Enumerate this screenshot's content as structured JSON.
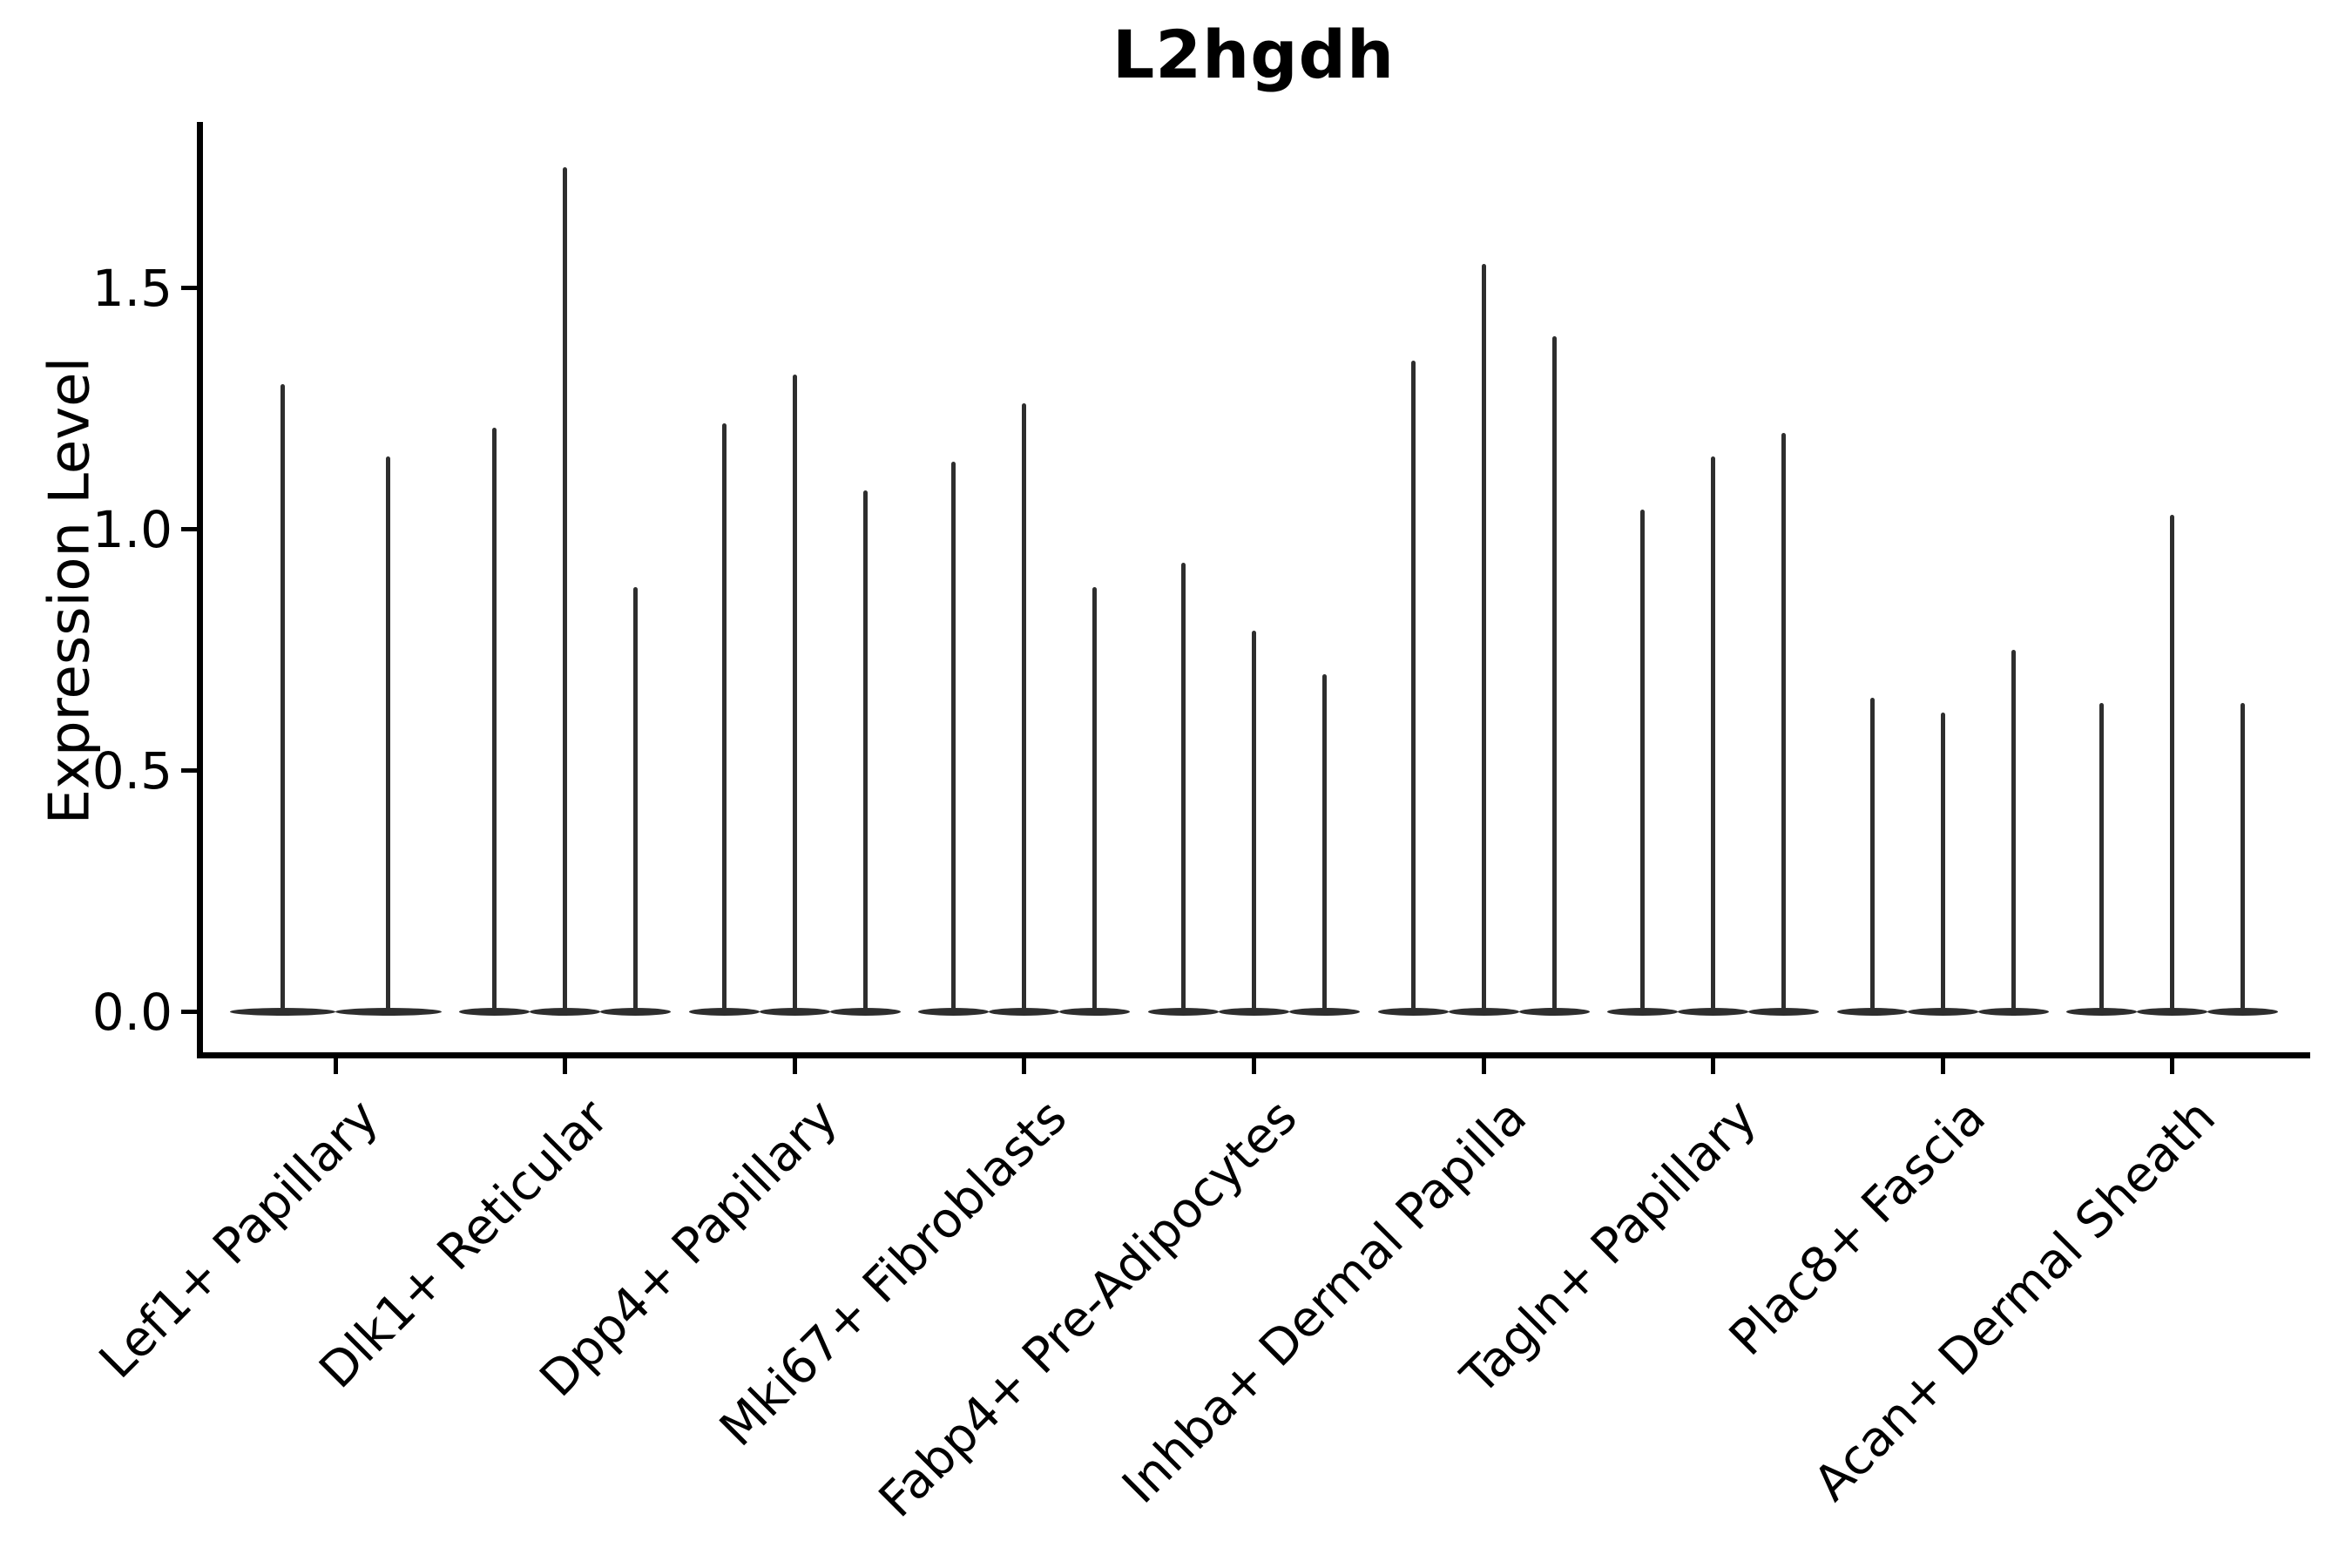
{
  "chart_data": {
    "type": "violin",
    "title": "L2hgdh",
    "ylabel": "Expression Level",
    "xlabel": "",
    "yticks": [
      "0.0",
      "0.5",
      "1.0",
      "1.5"
    ],
    "ytick_values": [
      0.0,
      0.5,
      1.0,
      1.5
    ],
    "ylim": [
      -0.09,
      1.84
    ],
    "grid": false,
    "legend": "none",
    "violin_color": "#2e2e2e",
    "axis_color": "#000000",
    "background_color": "#ffffff",
    "categories": [
      "Lef1+ Papillary",
      "Dlk1+ Reticular",
      "Dpp4+ Papillary",
      "Mki67+ Fibroblasts",
      "Fabp4+ Pre-Adipocytes",
      "Inhba+ Dermal Papilla",
      "Tagln+ Papillary",
      "Plac8+ Fascia",
      "Acan+ Dermal Sheath"
    ],
    "series": [
      {
        "category": "Lef1+ Papillary",
        "violin_max_values": [
          1.3,
          1.15
        ]
      },
      {
        "category": "Dlk1+ Reticular",
        "violin_max_values": [
          1.21,
          1.75,
          0.88
        ]
      },
      {
        "category": "Dpp4+ Papillary",
        "violin_max_values": [
          1.22,
          1.32,
          1.08
        ]
      },
      {
        "category": "Mki67+ Fibroblasts",
        "violin_max_values": [
          1.14,
          1.26,
          0.88
        ]
      },
      {
        "category": "Fabp4+ Pre-Adipocytes",
        "violin_max_values": [
          0.93,
          0.79,
          0.7
        ]
      },
      {
        "category": "Inhba+ Dermal Papilla",
        "violin_max_values": [
          1.35,
          1.55,
          1.4
        ]
      },
      {
        "category": "Tagln+ Papillary",
        "violin_max_values": [
          1.04,
          1.15,
          1.2
        ]
      },
      {
        "category": "Plac8+ Fascia",
        "violin_max_values": [
          0.65,
          0.62,
          0.75
        ]
      },
      {
        "category": "Acan+ Dermal Sheath",
        "violin_max_values": [
          0.64,
          1.03,
          0.64
        ]
      }
    ],
    "description": "Violin plot; each category contains one very thin violin per replicate: a flat wide base at expression 0 and a narrow spike rising to the maximum expression value."
  }
}
